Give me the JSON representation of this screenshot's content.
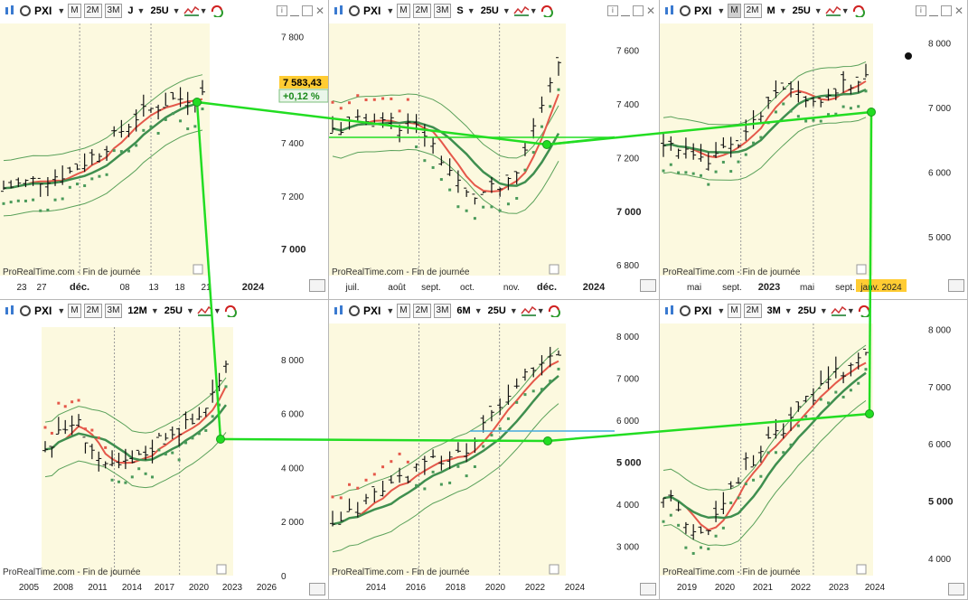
{
  "app": {
    "credit": "ProRealTime.com - Fin de journée"
  },
  "colors": {
    "band_fill": "#fcf9df",
    "band_line": "#5aa15a",
    "mid_line": "#3f8f4f",
    "fast_line": "#e5584a",
    "sar_red": "#e5584a",
    "sar_green": "#4a9a5a",
    "bar": "#111111",
    "trend": "#22dd22",
    "hline": "#44aadd",
    "tag_bg": "#ffcc33"
  },
  "panels": [
    {
      "id": "p1",
      "symbol": "PXI",
      "timeframes": [
        "M",
        "2M",
        "3M"
      ],
      "active_tf": "",
      "period": "J",
      "units": "25U",
      "y_ticks": [
        "7 800",
        "7 400",
        "7 200",
        "7 000"
      ],
      "x_labels": [
        "23",
        "27",
        "déc.",
        "08",
        "13",
        "18",
        "21",
        "2024"
      ],
      "last_price": "7 583,43",
      "last_change": "+0,12 %"
    },
    {
      "id": "p2",
      "symbol": "PXI",
      "timeframes": [
        "M",
        "2M",
        "3M"
      ],
      "active_tf": "",
      "period": "S",
      "units": "25U",
      "y_ticks": [
        "7 600",
        "7 400",
        "7 200",
        "7 000",
        "6 800"
      ],
      "x_labels": [
        "juil.",
        "août",
        "sept.",
        "oct.",
        "nov.",
        "déc.",
        "2024"
      ]
    },
    {
      "id": "p3",
      "symbol": "PXI",
      "timeframes": [
        "M",
        "2M"
      ],
      "active_tf": "M",
      "period": "M",
      "units": "25U",
      "y_ticks": [
        "8 000",
        "7 000",
        "6 000",
        "5 000"
      ],
      "x_labels": [
        "mai",
        "sept.",
        "2023",
        "mai",
        "sept.",
        "janv. 2024"
      ]
    },
    {
      "id": "p4",
      "symbol": "PXI",
      "timeframes": [
        "M",
        "2M",
        "3M"
      ],
      "active_tf": "",
      "period": "12M",
      "units": "25U",
      "y_ticks": [
        "8 000",
        "6 000",
        "4 000",
        "2 000",
        "0"
      ],
      "x_labels": [
        "2005",
        "2008",
        "2011",
        "2014",
        "2017",
        "2020",
        "2023",
        "2026"
      ]
    },
    {
      "id": "p5",
      "symbol": "PXI",
      "timeframes": [
        "M",
        "2M",
        "3M"
      ],
      "active_tf": "",
      "period": "6M",
      "units": "25U",
      "y_ticks": [
        "8 000",
        "7 000",
        "6 000",
        "5 000",
        "4 000",
        "3 000"
      ],
      "x_labels": [
        "2014",
        "2016",
        "2018",
        "2020",
        "2022",
        "2024"
      ]
    },
    {
      "id": "p6",
      "symbol": "PXI",
      "timeframes": [
        "M",
        "2M"
      ],
      "active_tf": "",
      "period": "3M",
      "units": "25U",
      "y_ticks": [
        "8 000",
        "7 000",
        "6 000",
        "5 000",
        "4 000"
      ],
      "x_labels": [
        "2019",
        "2020",
        "2021",
        "2022",
        "2023",
        "2024"
      ]
    }
  ],
  "chart_data": [
    {
      "type": "bar",
      "panel": "p1",
      "series_name": "PXI daily",
      "x": [
        "23",
        "27",
        "déc.",
        "08",
        "13",
        "18",
        "21"
      ],
      "y_ticks": [
        7800,
        7400,
        7200,
        7000
      ],
      "ylim": [
        6900,
        7800
      ],
      "last": 7583.43,
      "change_pct": 0.12,
      "close_approx": [
        7230,
        7260,
        7290,
        7380,
        7500,
        7560,
        7583
      ]
    },
    {
      "type": "bar",
      "panel": "p2",
      "series_name": "PXI weekly",
      "x": [
        "juil.",
        "août",
        "sept.",
        "oct.",
        "nov.",
        "déc."
      ],
      "y_ticks": [
        7600,
        7400,
        7200,
        7000,
        6800
      ],
      "ylim": [
        6750,
        7700
      ],
      "close_approx": [
        7300,
        7350,
        7300,
        7050,
        7100,
        7580
      ]
    },
    {
      "type": "bar",
      "panel": "p3",
      "series_name": "PXI monthly",
      "x": [
        "mai",
        "sept.",
        "2023",
        "mai",
        "sept.",
        "janv. 2024"
      ],
      "y_ticks": [
        8000,
        7000,
        6000,
        5000
      ],
      "ylim": [
        4400,
        8200
      ],
      "close_approx": [
        6500,
        6100,
        6600,
        7300,
        7100,
        7580
      ]
    },
    {
      "type": "bar",
      "panel": "p4",
      "series_name": "PXI yearly",
      "x": [
        "2005",
        "2008",
        "2011",
        "2014",
        "2017",
        "2020",
        "2023",
        "2026"
      ],
      "y_ticks": [
        8000,
        6000,
        4000,
        2000,
        0
      ],
      "ylim": [
        0,
        9000
      ],
      "close_approx": [
        4700,
        5800,
        3900,
        4200,
        5300,
        5700,
        7580
      ]
    },
    {
      "type": "bar",
      "panel": "p5",
      "series_name": "PXI semi-annual",
      "x": [
        "2014",
        "2016",
        "2018",
        "2020",
        "2022",
        "2024"
      ],
      "y_ticks": [
        8000,
        7000,
        6000,
        5000,
        4000,
        3000
      ],
      "ylim": [
        2300,
        8200
      ],
      "close_approx": [
        3400,
        4300,
        4900,
        5300,
        6800,
        7580
      ]
    },
    {
      "type": "bar",
      "panel": "p6",
      "series_name": "PXI quarterly",
      "x": [
        "2019",
        "2020",
        "2021",
        "2022",
        "2023",
        "2024"
      ],
      "y_ticks": [
        8000,
        7000,
        6000,
        5000,
        4000
      ],
      "ylim": [
        3600,
        8100
      ],
      "close_approx": [
        5100,
        4400,
        5600,
        6300,
        7100,
        7580
      ]
    }
  ]
}
